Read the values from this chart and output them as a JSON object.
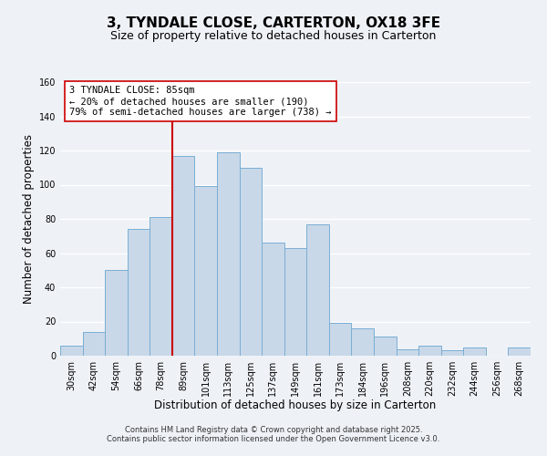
{
  "title": "3, TYNDALE CLOSE, CARTERTON, OX18 3FE",
  "subtitle": "Size of property relative to detached houses in Carterton",
  "xlabel": "Distribution of detached houses by size in Carterton",
  "ylabel": "Number of detached properties",
  "bar_labels": [
    "30sqm",
    "42sqm",
    "54sqm",
    "66sqm",
    "78sqm",
    "89sqm",
    "101sqm",
    "113sqm",
    "125sqm",
    "137sqm",
    "149sqm",
    "161sqm",
    "173sqm",
    "184sqm",
    "196sqm",
    "208sqm",
    "220sqm",
    "232sqm",
    "244sqm",
    "256sqm",
    "268sqm"
  ],
  "bar_values": [
    6,
    14,
    50,
    74,
    81,
    117,
    99,
    119,
    110,
    66,
    63,
    77,
    19,
    16,
    11,
    4,
    6,
    3,
    5,
    0,
    5
  ],
  "bar_color": "#c8d8e8",
  "bar_edge_color": "#7aaed4",
  "vline_color": "#cc0000",
  "annotation_title": "3 TYNDALE CLOSE: 85sqm",
  "annotation_line1": "← 20% of detached houses are smaller (190)",
  "annotation_line2": "79% of semi-detached houses are larger (738) →",
  "annotation_box_color": "#ffffff",
  "annotation_box_edge": "#cc0000",
  "ylim": [
    0,
    160
  ],
  "yticks": [
    0,
    20,
    40,
    60,
    80,
    100,
    120,
    140,
    160
  ],
  "footer1": "Contains HM Land Registry data © Crown copyright and database right 2025.",
  "footer2": "Contains public sector information licensed under the Open Government Licence v3.0.",
  "background_color": "#eef2f7",
  "grid_color": "#ffffff",
  "title_fontsize": 11,
  "subtitle_fontsize": 9,
  "axis_label_fontsize": 8.5,
  "tick_fontsize": 7,
  "annotation_fontsize": 7.5,
  "footer_fontsize": 6
}
